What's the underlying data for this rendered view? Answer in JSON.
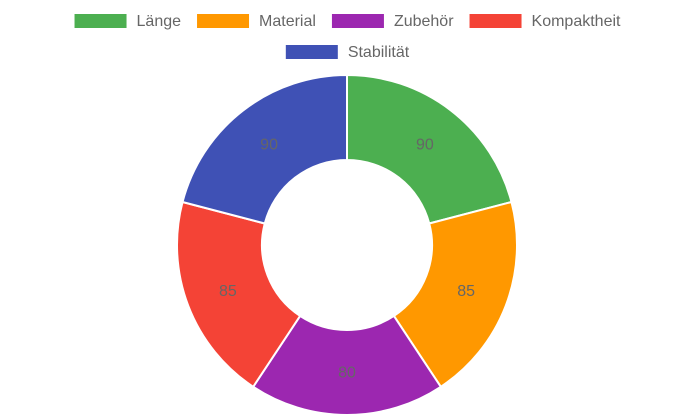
{
  "chart_data": {
    "type": "doughnut",
    "categories": [
      "Länge",
      "Material",
      "Zubehör",
      "Kompaktheit",
      "Stabilität"
    ],
    "values": [
      90,
      85,
      80,
      85,
      90
    ],
    "colors": [
      "#4caf50",
      "#ff9800",
      "#9c27b0",
      "#f44336",
      "#3f51b5"
    ],
    "legend": "top"
  }
}
